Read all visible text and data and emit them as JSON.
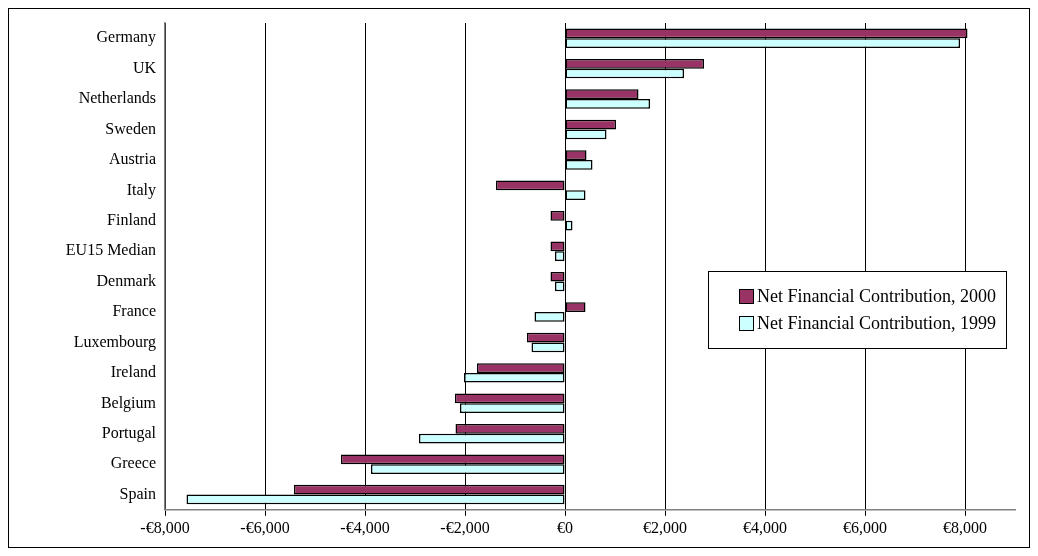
{
  "chart_data": {
    "type": "bar",
    "orientation": "horizontal",
    "categories": [
      "Germany",
      "UK",
      "Netherlands",
      "Sweden",
      "Austria",
      "Italy",
      "Finland",
      "EU15 Median",
      "Denmark",
      "France",
      "Luxembourg",
      "Ireland",
      "Belgium",
      "Portugal",
      "Greece",
      "Spain"
    ],
    "series": [
      {
        "name": "Net Financial Contribution, 2000",
        "color": "#993366",
        "values": [
          8050,
          2780,
          1470,
          1020,
          430,
          -1380,
          -290,
          -290,
          -290,
          410,
          -760,
          -1760,
          -2200,
          -2190,
          -4480,
          -5420
        ]
      },
      {
        "name": "Net Financial Contribution, 1999",
        "color": "#ccffff",
        "values": [
          7900,
          2380,
          1700,
          830,
          550,
          410,
          150,
          -200,
          -200,
          -610,
          -670,
          -2020,
          -2100,
          -2920,
          -3880,
          -7570
        ]
      }
    ],
    "xlim": [
      -8000,
      9000
    ],
    "xticks": [
      {
        "value": -8000,
        "label": "-€8,000"
      },
      {
        "value": -6000,
        "label": "-€6,000"
      },
      {
        "value": -4000,
        "label": "-€4,000"
      },
      {
        "value": -2000,
        "label": "-€2,000"
      },
      {
        "value": 0,
        "label": "€0"
      },
      {
        "value": 2000,
        "label": "€2,000"
      },
      {
        "value": 4000,
        "label": "€4,000"
      },
      {
        "value": 6000,
        "label": "€6,000"
      },
      {
        "value": 8000,
        "label": "€8,000"
      }
    ],
    "grid": "x",
    "legend": "right"
  }
}
